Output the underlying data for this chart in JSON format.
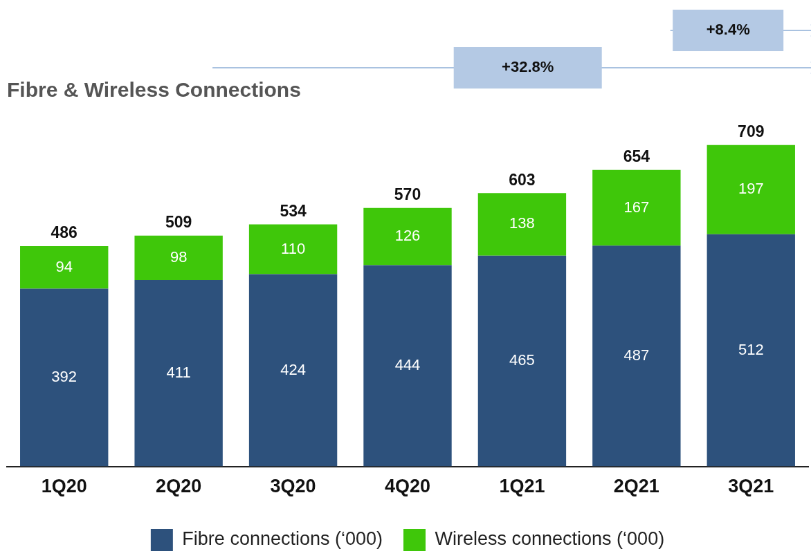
{
  "chart_data": {
    "type": "bar",
    "title": "Fibre & Wireless Connections",
    "categories": [
      "1Q20",
      "2Q20",
      "3Q20",
      "4Q20",
      "1Q21",
      "2Q21",
      "3Q21"
    ],
    "stacked": true,
    "data_labels": true,
    "legend": "bottom",
    "grid": false,
    "series": [
      {
        "name": "Fibre connections (‘000)",
        "color": "#2d517c",
        "values": [
          392,
          411,
          424,
          444,
          465,
          487,
          512
        ]
      },
      {
        "name": "Wireless connections (‘000)",
        "color": "#3fc70a",
        "values": [
          94,
          98,
          110,
          126,
          138,
          167,
          197
        ]
      }
    ],
    "totals": [
      "486",
      "509",
      "534",
      "570",
      "603",
      "654",
      "709"
    ],
    "annotations": [
      "+32.8%",
      "+8.4%"
    ]
  }
}
